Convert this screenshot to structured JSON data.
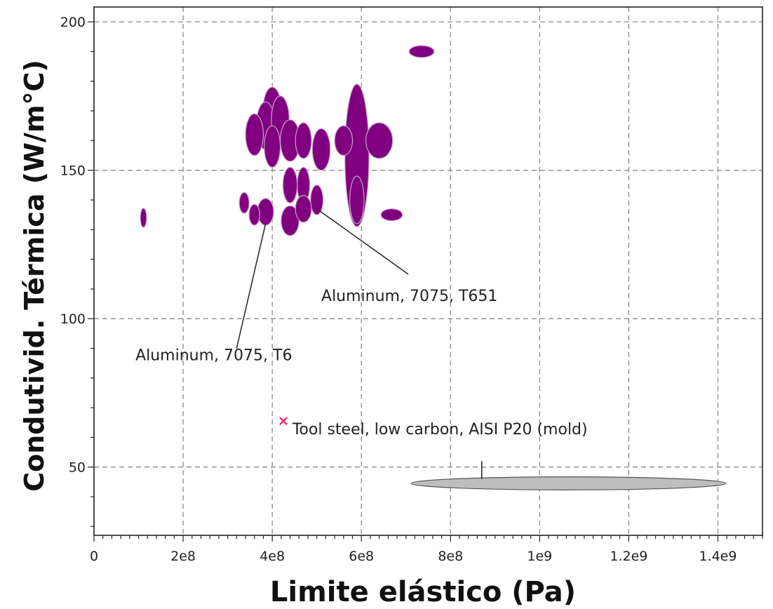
{
  "chart_data": {
    "type": "scatter",
    "xlabel": "Limite elástico (Pa)",
    "ylabel": "Condutivid. Térmica (W/m°C)",
    "xlim": [
      0,
      1500000000
    ],
    "ylim": [
      27,
      205
    ],
    "xticks": [
      0,
      200000000,
      400000000,
      600000000,
      800000000,
      1000000000,
      1200000000,
      1400000000
    ],
    "xtick_labels": [
      "0",
      "2e8",
      "4e8",
      "6e8",
      "8e8",
      "1e9",
      "1.2e9",
      "1.4e9"
    ],
    "yticks": [
      50,
      100,
      150,
      200
    ],
    "ytick_labels": [
      "50",
      "100",
      "150",
      "200"
    ],
    "grid": true,
    "colors": {
      "aluminum": "#800080",
      "aluminum_edge": "#c8a0c8",
      "steel": "#bebebe",
      "steel_edge": "#555555",
      "marker": "#e8336a",
      "grid": "#8a8a8a"
    },
    "series": [
      {
        "group": "aluminum",
        "ellipses": [
          {
            "x": 111000000,
            "y": 134,
            "rx": 7000000,
            "ry": 3.2
          },
          {
            "x": 735000000,
            "y": 190,
            "rx": 28000000,
            "ry": 2
          },
          {
            "x": 668000000,
            "y": 135,
            "rx": 24000000,
            "ry": 2
          },
          {
            "x": 590000000,
            "y": 155,
            "rx": 27000000,
            "ry": 24
          },
          {
            "x": 400000000,
            "y": 170,
            "rx": 21000000,
            "ry": 8
          },
          {
            "x": 385000000,
            "y": 165,
            "rx": 21000000,
            "ry": 8
          },
          {
            "x": 418000000,
            "y": 167,
            "rx": 20000000,
            "ry": 8
          },
          {
            "x": 360000000,
            "y": 162,
            "rx": 20000000,
            "ry": 7
          },
          {
            "x": 440000000,
            "y": 160,
            "rx": 22000000,
            "ry": 7
          },
          {
            "x": 400000000,
            "y": 158,
            "rx": 18000000,
            "ry": 7
          },
          {
            "x": 440000000,
            "y": 145,
            "rx": 16000000,
            "ry": 6
          },
          {
            "x": 470000000,
            "y": 145,
            "rx": 14000000,
            "ry": 6
          },
          {
            "x": 470000000,
            "y": 160,
            "rx": 18000000,
            "ry": 6
          },
          {
            "x": 510000000,
            "y": 157,
            "rx": 20000000,
            "ry": 7
          },
          {
            "x": 500000000,
            "y": 140,
            "rx": 14000000,
            "ry": 5
          },
          {
            "x": 560000000,
            "y": 160,
            "rx": 20000000,
            "ry": 5
          },
          {
            "x": 640000000,
            "y": 160,
            "rx": 30000000,
            "ry": 6
          },
          {
            "x": 590000000,
            "y": 140,
            "rx": 16000000,
            "ry": 8
          },
          {
            "x": 337000000,
            "y": 139,
            "rx": 11000000,
            "ry": 3.5
          },
          {
            "x": 385000000,
            "y": 136,
            "rx": 18000000,
            "ry": 4.5
          },
          {
            "x": 440000000,
            "y": 133,
            "rx": 20000000,
            "ry": 5
          },
          {
            "x": 470000000,
            "y": 137,
            "rx": 18000000,
            "ry": 4.5
          },
          {
            "x": 360000000,
            "y": 135,
            "rx": 12000000,
            "ry": 3.5
          }
        ]
      },
      {
        "group": "steel",
        "ellipses": [
          {
            "x": 1065000000,
            "y": 44.5,
            "rx": 353000000,
            "ry": 2.2
          }
        ]
      }
    ],
    "markers": [
      {
        "x": 425000000,
        "y": 65.5,
        "shape": "x"
      }
    ],
    "annotations": [
      {
        "text": "Aluminum, 7075, T651",
        "x": 510000000,
        "y": 106,
        "target_x": 500000000,
        "target_y": 137,
        "line_start_x": 705000000,
        "line_start_y": 115
      },
      {
        "text": "Aluminum, 7075, T6",
        "x": 93000000,
        "y": 86,
        "target_x": 385000000,
        "target_y": 132,
        "line_start_x": 320000000,
        "line_start_y": 90
      },
      {
        "text": "Tool steel, low carbon, AISI P20 (mold)",
        "x": 445000000,
        "y": 61,
        "target_x": 870000000,
        "target_y": 46,
        "line_start_x": 870000000,
        "line_start_y": 52
      }
    ]
  }
}
